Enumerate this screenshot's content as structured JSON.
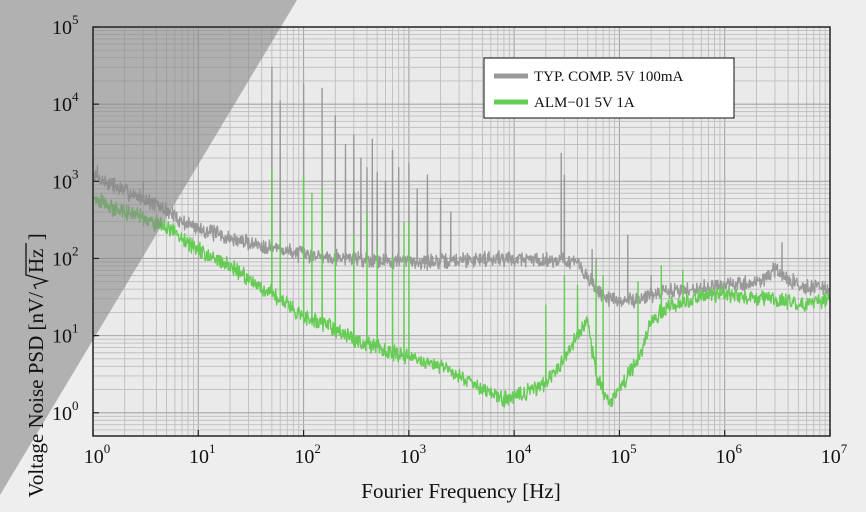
{
  "chart_data": {
    "type": "line",
    "x_scale": "log",
    "y_scale": "log",
    "xlim": [
      1,
      10000000
    ],
    "ylim": [
      0.5,
      100000
    ],
    "xlabel": "Fourier Frequency [Hz]",
    "ylabel_prefix": "Voltage Noise PSD [nV/",
    "ylabel_radicand": "Hz",
    "ylabel_suffix": "]",
    "x_ticks": [
      {
        "base": "10",
        "exp": "0",
        "value": 1
      },
      {
        "base": "10",
        "exp": "1",
        "value": 10
      },
      {
        "base": "10",
        "exp": "2",
        "value": 100
      },
      {
        "base": "10",
        "exp": "3",
        "value": 1000
      },
      {
        "base": "10",
        "exp": "4",
        "value": 10000
      },
      {
        "base": "10",
        "exp": "5",
        "value": 100000
      },
      {
        "base": "10",
        "exp": "6",
        "value": 1000000
      },
      {
        "base": "10",
        "exp": "7",
        "value": 10000000
      }
    ],
    "y_ticks": [
      {
        "base": "10",
        "exp": "0",
        "value": 1
      },
      {
        "base": "10",
        "exp": "1",
        "value": 10
      },
      {
        "base": "10",
        "exp": "2",
        "value": 100
      },
      {
        "base": "10",
        "exp": "3",
        "value": 1000
      },
      {
        "base": "10",
        "exp": "4",
        "value": 10000
      },
      {
        "base": "10",
        "exp": "5",
        "value": 100000
      }
    ],
    "grid": true,
    "legend_position": "top-right",
    "series": [
      {
        "name": "TYP. COMP. 5V 100mA",
        "color": "#999999",
        "base": [
          [
            1,
            1200
          ],
          [
            1.5,
            900
          ],
          [
            2,
            750
          ],
          [
            3,
            600
          ],
          [
            5,
            420
          ],
          [
            7,
            300
          ],
          [
            10,
            250
          ],
          [
            20,
            180
          ],
          [
            30,
            160
          ],
          [
            50,
            140
          ],
          [
            70,
            125
          ],
          [
            100,
            112
          ],
          [
            200,
            105
          ],
          [
            300,
            100
          ],
          [
            500,
            95
          ],
          [
            700,
            93
          ],
          [
            1000,
            92
          ],
          [
            2000,
            90
          ],
          [
            3000,
            95
          ],
          [
            5000,
            100
          ],
          [
            10000,
            100
          ],
          [
            20000,
            95
          ],
          [
            30000,
            98
          ],
          [
            40000,
            85
          ],
          [
            60000,
            40
          ],
          [
            80000,
            30
          ],
          [
            100000,
            27
          ],
          [
            200000,
            33
          ],
          [
            300000,
            38
          ],
          [
            500000,
            40
          ],
          [
            1000000,
            45
          ],
          [
            2000000,
            48
          ],
          [
            3000000,
            70
          ],
          [
            5000000,
            45
          ],
          [
            10000000,
            40
          ]
        ],
        "spikes": [
          [
            1.1,
            1600
          ],
          [
            1.6,
            1100
          ],
          [
            3,
            1000
          ],
          [
            50,
            30000
          ],
          [
            60,
            11000
          ],
          [
            100,
            18000
          ],
          [
            150,
            16000
          ],
          [
            200,
            7000
          ],
          [
            250,
            3000
          ],
          [
            300,
            4000
          ],
          [
            350,
            2000
          ],
          [
            400,
            1500
          ],
          [
            450,
            3500
          ],
          [
            500,
            1300
          ],
          [
            600,
            1000
          ],
          [
            700,
            2500
          ],
          [
            800,
            1500
          ],
          [
            1000,
            1700
          ],
          [
            1200,
            800
          ],
          [
            1500,
            1200
          ],
          [
            2000,
            600
          ],
          [
            2500,
            400
          ],
          [
            28000,
            2300
          ],
          [
            30000,
            1200
          ],
          [
            55000,
            130
          ],
          [
            60000,
            100
          ],
          [
            120000,
            200
          ],
          [
            200000,
            60
          ],
          [
            3500000,
            160
          ],
          [
            9000000,
            50
          ]
        ]
      },
      {
        "name": "ALM−01 5V 1A",
        "color": "#66cc55",
        "base": [
          [
            1,
            600
          ],
          [
            1.5,
            450
          ],
          [
            2,
            400
          ],
          [
            3,
            330
          ],
          [
            5,
            250
          ],
          [
            7,
            180
          ],
          [
            10,
            130
          ],
          [
            20,
            80
          ],
          [
            30,
            55
          ],
          [
            50,
            35
          ],
          [
            70,
            26
          ],
          [
            100,
            18
          ],
          [
            200,
            12
          ],
          [
            300,
            9
          ],
          [
            500,
            7
          ],
          [
            700,
            6
          ],
          [
            1000,
            5
          ],
          [
            2000,
            4
          ],
          [
            3000,
            3
          ],
          [
            5000,
            2
          ],
          [
            8000,
            1.5
          ],
          [
            10000,
            1.6
          ],
          [
            15000,
            2
          ],
          [
            20000,
            2.5
          ],
          [
            30000,
            5
          ],
          [
            40000,
            10
          ],
          [
            50000,
            15
          ],
          [
            60000,
            3
          ],
          [
            80000,
            1.3
          ],
          [
            100000,
            2
          ],
          [
            150000,
            5
          ],
          [
            200000,
            15
          ],
          [
            300000,
            25
          ],
          [
            500000,
            30
          ],
          [
            800000,
            35
          ],
          [
            1000000,
            35
          ],
          [
            2000000,
            30
          ],
          [
            3000000,
            30
          ],
          [
            5000000,
            25
          ],
          [
            10000000,
            30
          ]
        ],
        "spikes": [
          [
            1.2,
            700
          ],
          [
            50,
            1500
          ],
          [
            60,
            200
          ],
          [
            100,
            1200
          ],
          [
            120,
            700
          ],
          [
            150,
            800
          ],
          [
            200,
            120
          ],
          [
            300,
            200
          ],
          [
            400,
            400
          ],
          [
            500,
            140
          ],
          [
            700,
            100
          ],
          [
            900,
            300
          ],
          [
            1000,
            300
          ],
          [
            20000,
            25
          ],
          [
            30000,
            60
          ],
          [
            40000,
            45
          ],
          [
            60000,
            80
          ],
          [
            70000,
            60
          ],
          [
            150000,
            50
          ],
          [
            250000,
            80
          ],
          [
            400000,
            70
          ]
        ]
      }
    ]
  }
}
